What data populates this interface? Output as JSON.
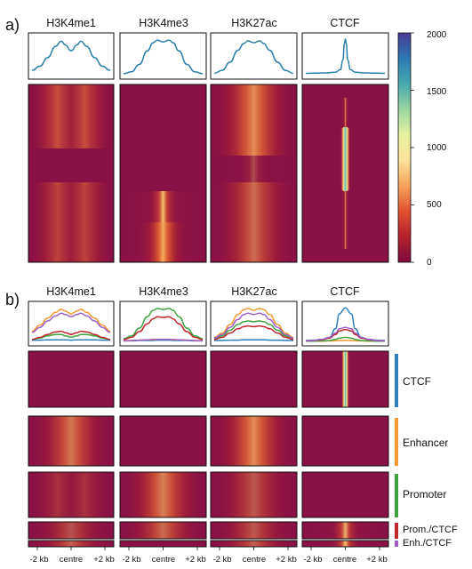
{
  "chart_data": [
    {
      "type": "heatmap",
      "panel_label": "a)",
      "columns": [
        "H3K4me1",
        "H3K4me3",
        "H3K27ac",
        "CTCF"
      ],
      "colorbar": {
        "min": 0,
        "max": 2000,
        "ticks": [
          0,
          500,
          1000,
          1500,
          2000
        ],
        "colors": [
          "#7e0a3e",
          "#b3202c",
          "#e0502f",
          "#f7a35c",
          "#fde29a",
          "#e6f2a0",
          "#9bd5a2",
          "#47a9ae",
          "#2b78b4",
          "#4b3b93"
        ]
      },
      "profile_color": "#2c7fa8",
      "profiles": [
        {
          "name": "H3K4me1",
          "x": [
            -2,
            -1.6,
            -1.2,
            -0.8,
            -0.5,
            -0.3,
            0,
            0.3,
            0.5,
            0.8,
            1.2,
            1.6,
            2
          ],
          "y": [
            0.14,
            0.25,
            0.48,
            0.78,
            0.92,
            0.82,
            0.66,
            0.82,
            0.92,
            0.78,
            0.48,
            0.25,
            0.14
          ]
        },
        {
          "name": "H3K4me3",
          "x": [
            -2,
            -1.6,
            -1.2,
            -0.8,
            -0.5,
            -0.3,
            0,
            0.3,
            0.5,
            0.8,
            1.2,
            1.6,
            2
          ],
          "y": [
            0.05,
            0.1,
            0.3,
            0.66,
            0.88,
            0.95,
            0.9,
            0.95,
            0.88,
            0.66,
            0.3,
            0.1,
            0.05
          ]
        },
        {
          "name": "H3K27ac",
          "x": [
            -2,
            -1.6,
            -1.2,
            -0.8,
            -0.5,
            -0.3,
            0,
            0.3,
            0.5,
            0.8,
            1.2,
            1.6,
            2
          ],
          "y": [
            0.06,
            0.14,
            0.36,
            0.68,
            0.86,
            0.93,
            0.88,
            0.93,
            0.86,
            0.68,
            0.36,
            0.14,
            0.06
          ]
        },
        {
          "name": "CTCF",
          "x": [
            -2,
            -1,
            -0.5,
            -0.25,
            -0.12,
            -0.05,
            0,
            0.05,
            0.12,
            0.25,
            0.5,
            1,
            2
          ],
          "y": [
            0.06,
            0.07,
            0.09,
            0.16,
            0.42,
            0.85,
            0.98,
            0.85,
            0.42,
            0.16,
            0.09,
            0.07,
            0.06
          ]
        }
      ]
    },
    {
      "type": "heatmap",
      "panel_label": "b)",
      "columns": [
        "H3K4me1",
        "H3K4me3",
        "H3K27ac",
        "CTCF"
      ],
      "x_tick_labels": [
        "-2 kb",
        "centre",
        "+2 kb"
      ],
      "groups": [
        {
          "name": "CTCF",
          "color": "#2c7fb8"
        },
        {
          "name": "Enhancer",
          "color": "#f39a34"
        },
        {
          "name": "Promoter",
          "color": "#3ea33e"
        },
        {
          "name": "Prom./CTCF",
          "color": "#c0272d"
        },
        {
          "name": "Enh./CTCF",
          "color": "#a05ec4"
        }
      ],
      "profiles": {
        "H3K4me1": [
          {
            "group": "CTCF",
            "y": [
              0.06,
              0.06,
              0.07,
              0.07,
              0.07,
              0.07,
              0.06,
              0.07,
              0.07,
              0.07,
              0.07,
              0.06,
              0.06
            ]
          },
          {
            "group": "Enhancer",
            "y": [
              0.32,
              0.48,
              0.68,
              0.84,
              0.93,
              0.88,
              0.8,
              0.88,
              0.93,
              0.84,
              0.68,
              0.48,
              0.32
            ]
          },
          {
            "group": "Promoter",
            "y": [
              0.08,
              0.12,
              0.18,
              0.22,
              0.22,
              0.18,
              0.14,
              0.18,
              0.22,
              0.22,
              0.18,
              0.12,
              0.08
            ]
          },
          {
            "group": "Prom./CTCF",
            "y": [
              0.08,
              0.14,
              0.22,
              0.29,
              0.31,
              0.27,
              0.22,
              0.27,
              0.31,
              0.29,
              0.22,
              0.14,
              0.08
            ]
          },
          {
            "group": "Enh./CTCF",
            "y": [
              0.28,
              0.42,
              0.6,
              0.74,
              0.82,
              0.78,
              0.72,
              0.78,
              0.82,
              0.74,
              0.6,
              0.42,
              0.28
            ]
          }
        ],
        "H3K4me3": [
          {
            "group": "CTCF",
            "y": [
              0.04,
              0.04,
              0.05,
              0.05,
              0.05,
              0.06,
              0.06,
              0.06,
              0.05,
              0.05,
              0.05,
              0.04,
              0.04
            ]
          },
          {
            "group": "Enhancer",
            "y": [
              0.05,
              0.05,
              0.06,
              0.07,
              0.07,
              0.08,
              0.08,
              0.08,
              0.07,
              0.07,
              0.06,
              0.05,
              0.05
            ]
          },
          {
            "group": "Promoter",
            "y": [
              0.1,
              0.18,
              0.4,
              0.72,
              0.9,
              0.95,
              0.92,
              0.95,
              0.9,
              0.72,
              0.4,
              0.18,
              0.1
            ]
          },
          {
            "group": "Prom./CTCF",
            "y": [
              0.08,
              0.14,
              0.3,
              0.52,
              0.66,
              0.72,
              0.7,
              0.72,
              0.66,
              0.52,
              0.3,
              0.14,
              0.08
            ]
          },
          {
            "group": "Enh./CTCF",
            "y": [
              0.04,
              0.05,
              0.06,
              0.07,
              0.08,
              0.08,
              0.08,
              0.08,
              0.08,
              0.07,
              0.06,
              0.05,
              0.04
            ]
          }
        ],
        "H3K27ac": [
          {
            "group": "CTCF",
            "y": [
              0.05,
              0.05,
              0.06,
              0.06,
              0.07,
              0.07,
              0.07,
              0.07,
              0.07,
              0.06,
              0.06,
              0.05,
              0.05
            ]
          },
          {
            "group": "Enhancer",
            "y": [
              0.14,
              0.26,
              0.5,
              0.78,
              0.92,
              0.95,
              0.9,
              0.95,
              0.92,
              0.78,
              0.5,
              0.26,
              0.14
            ]
          },
          {
            "group": "Promoter",
            "y": [
              0.1,
              0.18,
              0.34,
              0.5,
              0.58,
              0.6,
              0.58,
              0.6,
              0.58,
              0.5,
              0.34,
              0.18,
              0.1
            ]
          },
          {
            "group": "Prom./CTCF",
            "y": [
              0.08,
              0.14,
              0.26,
              0.38,
              0.44,
              0.46,
              0.44,
              0.46,
              0.44,
              0.38,
              0.26,
              0.14,
              0.08
            ]
          },
          {
            "group": "Enh./CTCF",
            "y": [
              0.12,
              0.22,
              0.42,
              0.64,
              0.78,
              0.82,
              0.78,
              0.82,
              0.78,
              0.64,
              0.42,
              0.22,
              0.12
            ]
          }
        ],
        "CTCF": [
          {
            "group": "CTCF",
            "y": [
              0.05,
              0.06,
              0.08,
              0.14,
              0.38,
              0.8,
              0.97,
              0.8,
              0.38,
              0.14,
              0.08,
              0.06,
              0.05
            ]
          },
          {
            "group": "Enhancer",
            "y": [
              0.03,
              0.03,
              0.03,
              0.04,
              0.04,
              0.05,
              0.05,
              0.05,
              0.04,
              0.04,
              0.03,
              0.03,
              0.03
            ]
          },
          {
            "group": "Promoter",
            "y": [
              0.03,
              0.03,
              0.04,
              0.05,
              0.08,
              0.12,
              0.14,
              0.12,
              0.08,
              0.05,
              0.04,
              0.03,
              0.03
            ]
          },
          {
            "group": "Prom./CTCF",
            "y": [
              0.04,
              0.05,
              0.07,
              0.12,
              0.22,
              0.32,
              0.36,
              0.32,
              0.22,
              0.12,
              0.07,
              0.05,
              0.04
            ]
          },
          {
            "group": "Enh./CTCF",
            "y": [
              0.04,
              0.05,
              0.08,
              0.14,
              0.26,
              0.38,
              0.42,
              0.38,
              0.26,
              0.14,
              0.08,
              0.05,
              0.04
            ]
          }
        ]
      },
      "profile_x": [
        -2,
        -1.6,
        -1.2,
        -0.8,
        -0.5,
        -0.3,
        0,
        0.3,
        0.5,
        0.8,
        1.2,
        1.6,
        2
      ]
    }
  ]
}
